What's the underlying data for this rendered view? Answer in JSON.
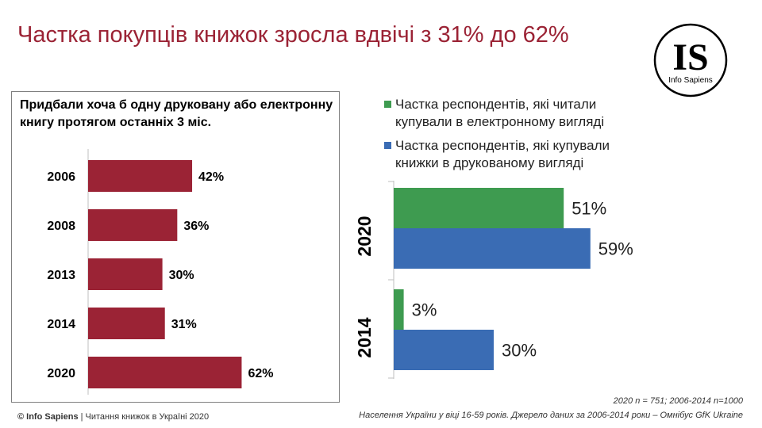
{
  "title": "Частка покупців книжок зросла вдвічі з 31% до 62%",
  "logo": {
    "text": "IS",
    "caption": "Info Sapiens"
  },
  "colors": {
    "title": "#9b2335",
    "left_bar": "#9b2335",
    "electronic": "#3e9b50",
    "printed": "#3a6cb4"
  },
  "chart_data": [
    {
      "type": "bar",
      "orientation": "horizontal",
      "title": "Придбали хоча б одну друковану або електронну книгу протягом останніх 3 міс.",
      "categories": [
        "2006",
        "2008",
        "2013",
        "2014",
        "2020"
      ],
      "values": [
        42,
        36,
        30,
        31,
        62
      ],
      "value_labels": [
        "42%",
        "36%",
        "30%",
        "31%",
        "62%"
      ],
      "xlim": [
        0,
        100
      ],
      "grid": false
    },
    {
      "type": "bar",
      "orientation": "horizontal",
      "categories": [
        "2020",
        "2014"
      ],
      "series": [
        {
          "name": "Частка респондентів, які читали купували в електронному вигляді",
          "color": "#3e9b50",
          "values": [
            51,
            3
          ],
          "value_labels": [
            "51%",
            "3%"
          ]
        },
        {
          "name": "Частка респондентів, які купували книжки в друкованому вигляді",
          "color": "#3a6cb4",
          "values": [
            59,
            30
          ],
          "value_labels": [
            "59%",
            "30%"
          ]
        }
      ],
      "xlim": [
        0,
        100
      ],
      "legend": "top",
      "grid": false
    }
  ],
  "footnote_sample": "2020 n = 751; 2006-2014 n=1000",
  "footnote_source": "Населення України у віці 16-59 років. Джерело даних за 2006-2014 роки – Омнібус GfK Ukraine",
  "copyright": {
    "brand": "© Info Sapiens",
    "text": " | Читання книжок в Україні 2020"
  }
}
